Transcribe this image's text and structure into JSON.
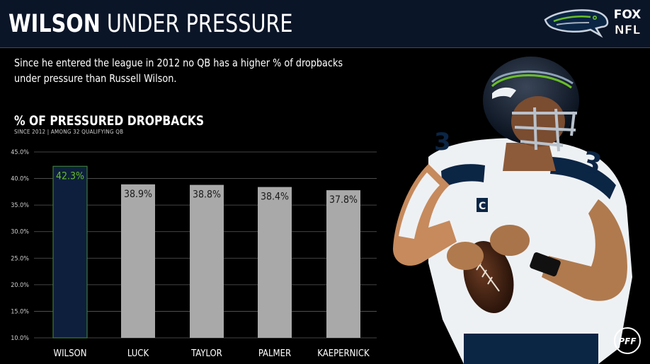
{
  "header": {
    "title_bold": "WILSON",
    "title_light": "UNDER PRESSURE",
    "logos": [
      "seahawks-logo",
      "fox-nfl-logo"
    ],
    "fox_line1": "FOX",
    "fox_line2": "NFL"
  },
  "subtitle": "Since he entered the league in 2012 no QB has a higher % of dropbacks under pressure than Russell Wilson.",
  "footer": {
    "pff_text": "PFF"
  },
  "colors": {
    "header_bg": "#0b1528",
    "highlight_bar": "#0d1f3c",
    "highlight_border": "#3e7a3a",
    "highlight_label": "#69be28",
    "bar": "#a9a9a9"
  },
  "chart_data": {
    "type": "bar",
    "title": "% OF PRESSURED DROPBACKS",
    "subtitle": "SINCE 2012 | AMONG 32 QUALIFYING QB",
    "categories": [
      "WILSON",
      "LUCK",
      "TAYLOR",
      "PALMER",
      "KAEPERNICK"
    ],
    "values": [
      42.3,
      38.9,
      38.8,
      38.4,
      37.8
    ],
    "value_labels": [
      "42.3%",
      "38.9%",
      "38.8%",
      "38.4%",
      "37.8%"
    ],
    "highlight_index": 0,
    "ylim": [
      10,
      45
    ],
    "yticks": [
      10,
      15,
      20,
      25,
      30,
      35,
      40,
      45
    ],
    "ytick_labels": [
      "10.0%",
      "15.0%",
      "20.0%",
      "25.0%",
      "30.0%",
      "35.0%",
      "40.0%",
      "45.0%"
    ],
    "grid": true,
    "xlabel": "",
    "ylabel": ""
  }
}
